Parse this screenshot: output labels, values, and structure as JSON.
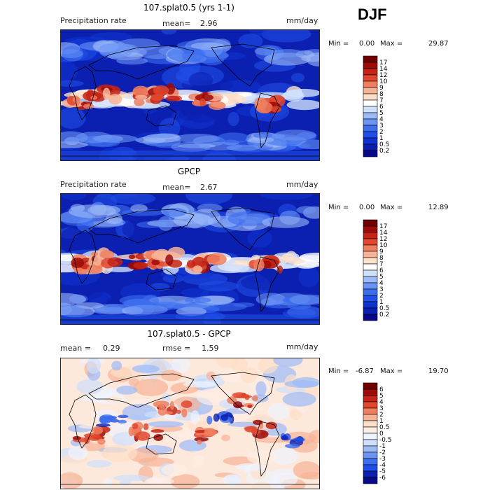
{
  "season": "DJF",
  "chart_data": [
    {
      "type": "heatmap",
      "title": "107.splat0.5 (yrs 1-1)",
      "variable": "Precipitation rate",
      "mean_label": "mean=",
      "mean_value": "2.96",
      "units": "mm/day",
      "min_label": "Min =",
      "min_value": "0.00",
      "max_label": "Max =",
      "max_value": "29.87",
      "colorbar": {
        "levels": [
          "0.2",
          "0.5",
          "1",
          "2",
          "3",
          "4",
          "5",
          "6",
          "7",
          "8",
          "9",
          "10",
          "12",
          "14",
          "17"
        ],
        "colors": [
          "#08088a",
          "#0b1fb0",
          "#0f33d0",
          "#1f4ee8",
          "#3c6ef0",
          "#6b94f5",
          "#9cbbf8",
          "#cfe0fb",
          "#ffffff",
          "#fde0c8",
          "#f7b396",
          "#ef7f5f",
          "#e0472e",
          "#c42315",
          "#9e0a07",
          "#700000"
        ]
      }
    },
    {
      "type": "heatmap",
      "title": "GPCP",
      "variable": "Precipitation rate",
      "mean_label": "mean=",
      "mean_value": "2.67",
      "units": "mm/day",
      "min_label": "Min =",
      "min_value": "0.00",
      "max_label": "Max =",
      "max_value": "12.89",
      "colorbar": {
        "levels": [
          "0.2",
          "0.5",
          "1",
          "2",
          "3",
          "4",
          "5",
          "6",
          "7",
          "8",
          "9",
          "10",
          "12",
          "14",
          "17"
        ],
        "colors": [
          "#08088a",
          "#0b1fb0",
          "#0f33d0",
          "#1f4ee8",
          "#3c6ef0",
          "#6b94f5",
          "#9cbbf8",
          "#cfe0fb",
          "#ffffff",
          "#fde0c8",
          "#f7b396",
          "#ef7f5f",
          "#e0472e",
          "#c42315",
          "#9e0a07",
          "#700000"
        ]
      }
    },
    {
      "type": "heatmap",
      "title": "107.splat0.5 - GPCP",
      "mean_label": "mean =",
      "mean_value": "0.29",
      "rmse_label": "rmse =",
      "rmse_value": "1.59",
      "units": "mm/day",
      "min_label": "Min =",
      "min_value": "-6.87",
      "max_label": "Max =",
      "max_value": "19.70",
      "colorbar": {
        "levels": [
          "-6",
          "-5",
          "-4",
          "-3",
          "-2",
          "-1",
          "-0.5",
          "0",
          "0.5",
          "1",
          "2",
          "3",
          "4",
          "5",
          "6"
        ],
        "colors": [
          "#08088a",
          "#0b1fb0",
          "#1f4ee8",
          "#3c6ef0",
          "#6b94f5",
          "#9cbbf8",
          "#cfe0fb",
          "#eef3fd",
          "#fdeee5",
          "#fde0c8",
          "#f7b396",
          "#ef7f5f",
          "#e0472e",
          "#c42315",
          "#9e0a07",
          "#700000"
        ]
      }
    }
  ]
}
